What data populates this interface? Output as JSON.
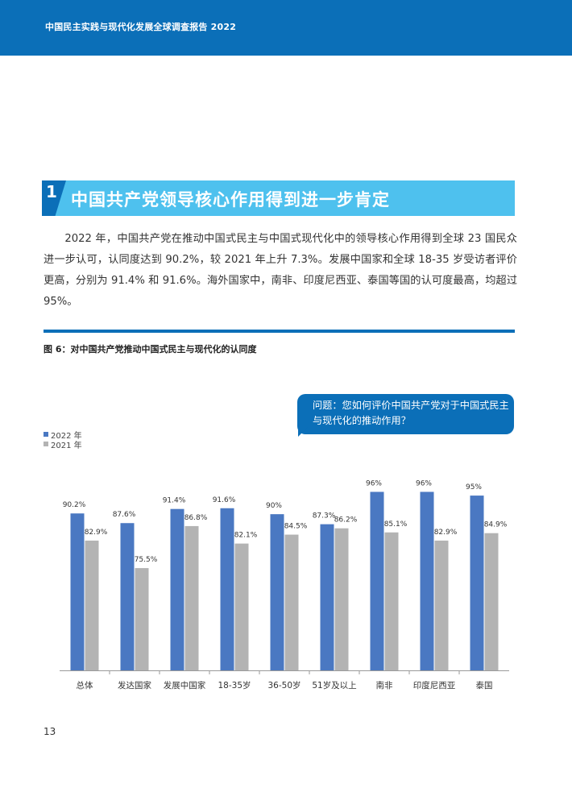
{
  "header": {
    "title": "中国民主实践与现代化发展全球调查报告 2022"
  },
  "section": {
    "number": "1",
    "title": "中国共产党领导核心作用得到进一步肯定"
  },
  "body_paragraph": "2022 年，中国共产党在推动中国式民主与中国式现代化中的领导核心作用得到全球 23 国民众进一步认可，认同度达到 90.2%，较 2021 年上升 7.3%。发展中国家和全球 18-35 岁受访者评价更高，分别为 91.4% 和 91.6%。海外国家中，南非、印度尼西亚、泰国等国的认可度最高，均超过 95%。",
  "figure": {
    "caption": "图 6：对中国共产党推动中国式民主与现代化的认同度",
    "question": "问题：您如何评价中国共产党对于中国式民主与现代化的推动作用？"
  },
  "chart_data": {
    "type": "bar",
    "categories": [
      "总体",
      "发达国家",
      "发展中国家",
      "18-35岁",
      "36-50岁",
      "51岁及以上",
      "南非",
      "印度尼西亚",
      "泰国"
    ],
    "series": [
      {
        "name": "2022 年",
        "color": "#4a78c2",
        "values": [
          90.2,
          87.6,
          91.4,
          91.6,
          90,
          87.3,
          96,
          96,
          95
        ],
        "labels": [
          "90.2%",
          "87.6%",
          "91.4%",
          "91.6%",
          "90%",
          "87.3%",
          "96%",
          "96%",
          "95%"
        ]
      },
      {
        "name": "2021 年",
        "color": "#b3b3b3",
        "values": [
          82.9,
          75.5,
          86.8,
          82.1,
          84.5,
          86.2,
          85.1,
          82.9,
          84.9
        ],
        "labels": [
          "82.9%",
          "75.5%",
          "86.8%",
          "82.1%",
          "84.5%",
          "86.2%",
          "85.1%",
          "82.9%",
          "84.9%"
        ]
      }
    ],
    "legend_position": "top-left",
    "grid": false
  },
  "footer": {
    "page_number": "13"
  }
}
